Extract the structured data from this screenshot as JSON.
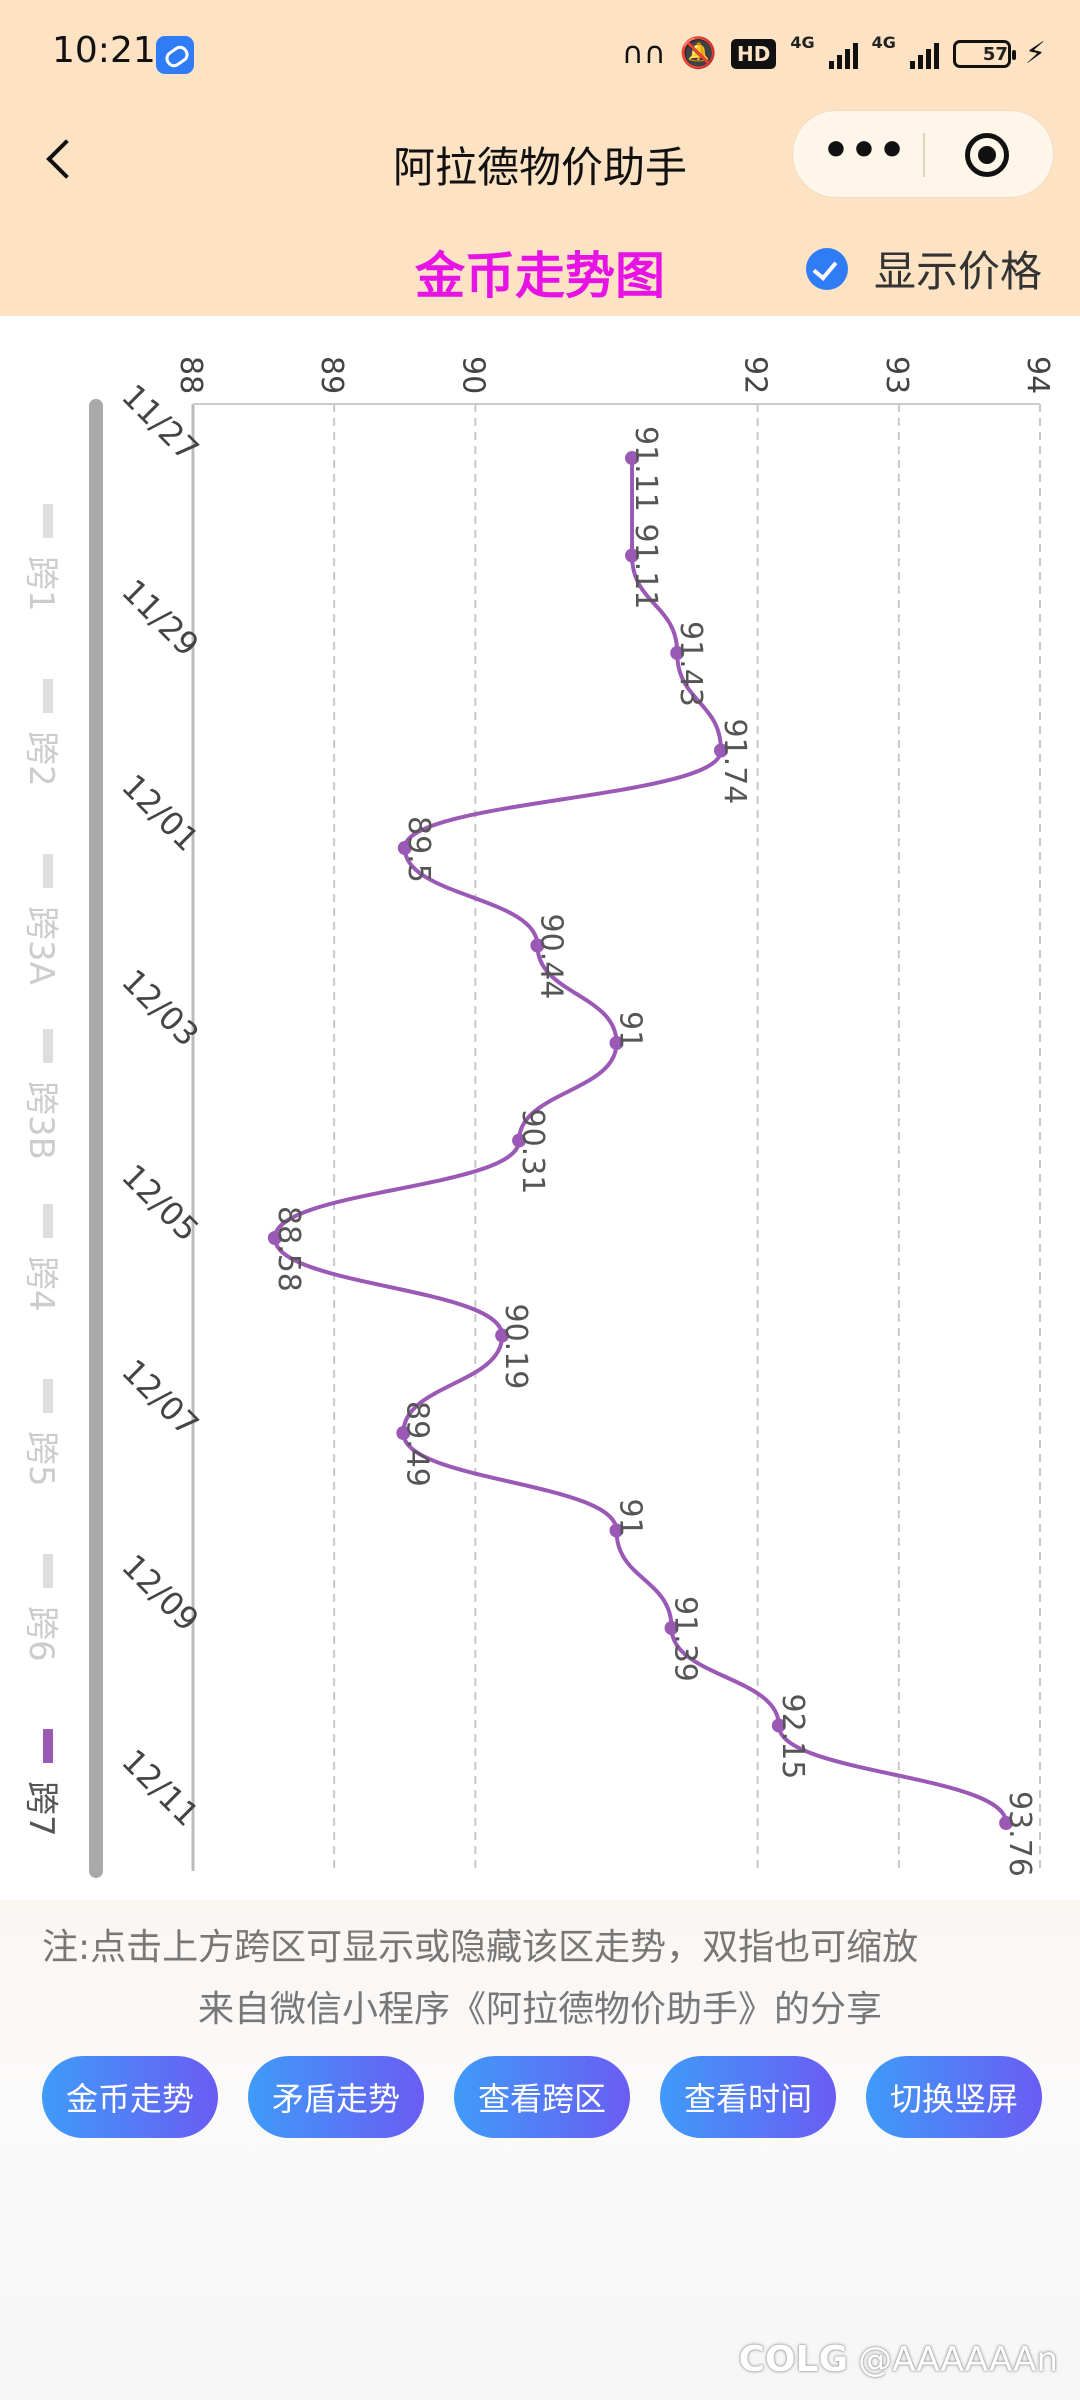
{
  "status_bar": {
    "time": "10:21",
    "network_1": "4G",
    "network_2": "4G",
    "hd_label": "HD",
    "battery": "57",
    "icons": [
      "link-app-icon",
      "earbuds-icon",
      "mute-icon",
      "hd-icon",
      "signal-icon",
      "signal-icon",
      "battery-icon",
      "charging-icon"
    ]
  },
  "nav": {
    "title": "阿拉德物价助手",
    "more_label": "•••",
    "icons": [
      "back-arrow-icon",
      "more-dots-icon",
      "target-icon"
    ]
  },
  "header": {
    "chart_title": "金币走势图",
    "show_price_label": "显示价格",
    "show_price_checked": true,
    "accent_color": "#e612e6",
    "check_color": "#2f7cf6"
  },
  "legend": {
    "items": [
      {
        "label": "跨1",
        "active": false
      },
      {
        "label": "跨2",
        "active": false
      },
      {
        "label": "跨3A",
        "active": false
      },
      {
        "label": "跨3B",
        "active": false
      },
      {
        "label": "跨4",
        "active": false
      },
      {
        "label": "跨5",
        "active": false
      },
      {
        "label": "跨6",
        "active": false
      },
      {
        "label": "跨7",
        "active": true
      }
    ]
  },
  "chart_data": {
    "type": "line",
    "orientation": "rotated-90",
    "title": "金币走势图",
    "value_axis_ticks": [
      "88",
      "89",
      "90",
      "92",
      "93",
      "94"
    ],
    "value_range": [
      88,
      94
    ],
    "date_ticks": [
      "11/27",
      "11/29",
      "12/01",
      "12/03",
      "12/05",
      "12/07",
      "12/09",
      "12/11"
    ],
    "grid": true,
    "series": [
      {
        "name": "跨7",
        "color": "#9b59b6",
        "points": [
          {
            "date": "11/27",
            "value": 91.11,
            "label": "91.11"
          },
          {
            "date": "11/28",
            "value": 91.11,
            "label": "91.11"
          },
          {
            "date": "11/29",
            "value": 91.43,
            "label": "91.43"
          },
          {
            "date": "11/30",
            "value": 91.74,
            "label": "91.74"
          },
          {
            "date": "12/01",
            "value": 89.5,
            "label": "89.5"
          },
          {
            "date": "12/02",
            "value": 90.44,
            "label": "90.44"
          },
          {
            "date": "12/03",
            "value": 91,
            "label": "91"
          },
          {
            "date": "12/04",
            "value": 90.31,
            "label": "90.31"
          },
          {
            "date": "12/05",
            "value": 88.58,
            "label": "88.58"
          },
          {
            "date": "12/06",
            "value": 90.19,
            "label": "90.19"
          },
          {
            "date": "12/07",
            "value": 89.49,
            "label": "89.49"
          },
          {
            "date": "12/08",
            "value": 91,
            "label": "91"
          },
          {
            "date": "12/09",
            "value": 91.39,
            "label": "91.39"
          },
          {
            "date": "12/10",
            "value": 92.15,
            "label": "92.15"
          },
          {
            "date": "12/11",
            "value": 93.76,
            "label": "93.76"
          }
        ]
      }
    ]
  },
  "footer": {
    "note": "注:点击上方跨区可显示或隐藏该区走势，双指也可缩放",
    "share": "来自微信小程序《阿拉德物价助手》的分享",
    "buttons": [
      "金币走势",
      "矛盾走势",
      "查看跨区",
      "查看时间",
      "切换竖屏"
    ],
    "watermark_logo": "COLG",
    "watermark_user": "@AAAAAAn"
  }
}
